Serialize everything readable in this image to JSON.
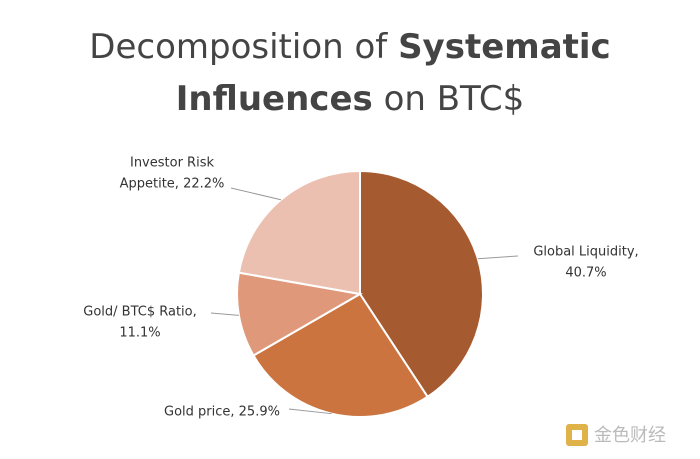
{
  "chart_data": {
    "type": "pie",
    "title": [
      [
        {
          "text": "Decomposition of ",
          "bold": false
        },
        {
          "text": "Systematic",
          "bold": true
        }
      ],
      [
        {
          "text": "Influences",
          "bold": true
        },
        {
          "text": " on BTC$",
          "bold": false
        }
      ]
    ],
    "values": [
      40.7,
      25.9,
      11.1,
      22.2
    ],
    "value_labels": [
      [
        "Global Liquidity,",
        "40.7%"
      ],
      [
        "Gold price, 25.9%"
      ],
      [
        "Gold/ BTC$ Ratio,",
        "11.1%"
      ],
      [
        "Investor Risk",
        "Appetite, 22.2%"
      ]
    ],
    "colors": [
      "#a65a30",
      "#cc743f",
      "#e0987a",
      "#ecc0b0"
    ],
    "watermark": "金色财经"
  }
}
